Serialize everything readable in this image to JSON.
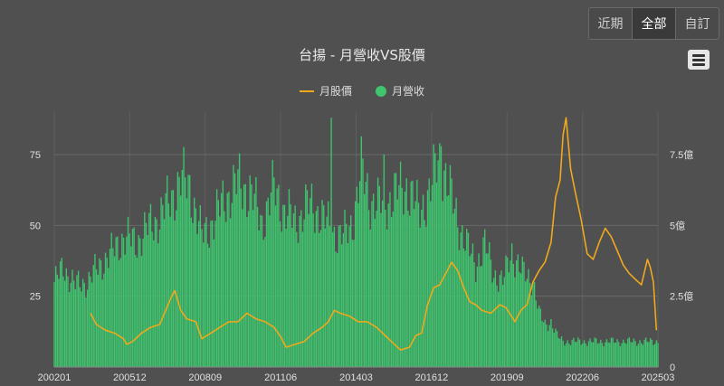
{
  "range_buttons": [
    {
      "label": "近期",
      "active": false
    },
    {
      "label": "全部",
      "active": true
    },
    {
      "label": "自訂",
      "active": false
    }
  ],
  "menu_icon": "hamburger-menu-icon",
  "chart_data": {
    "type": "bar+line",
    "title": "台揚 - 月營收VS股價",
    "legend": [
      {
        "name": "月股價",
        "type": "line",
        "color": "#f0a81c"
      },
      {
        "name": "月營收",
        "type": "bar",
        "color": "#3ec56e"
      }
    ],
    "x_tick_labels": [
      "200201",
      "200512",
      "200809",
      "201106",
      "201403",
      "201612",
      "201909",
      "202206",
      "202503"
    ],
    "y_left": {
      "ticks": [
        0,
        25,
        50,
        75
      ],
      "labels": [
        "",
        "25",
        "50",
        "75"
      ],
      "range": [
        0,
        90
      ]
    },
    "y_right": {
      "ticks": [
        0,
        2.5,
        5,
        7.5
      ],
      "labels": [
        "0",
        "2.5億",
        "5億",
        "7.5億"
      ],
      "range": [
        0,
        9
      ]
    },
    "grid": true,
    "revenue_anchors": [
      [
        0,
        3.0
      ],
      [
        6,
        3.5
      ],
      [
        14,
        2.9
      ],
      [
        22,
        3.0
      ],
      [
        30,
        3.6
      ],
      [
        38,
        4.0
      ],
      [
        46,
        4.6
      ],
      [
        54,
        4.4
      ],
      [
        62,
        4.9
      ],
      [
        70,
        5.3
      ],
      [
        78,
        6.0
      ],
      [
        84,
        6.6
      ],
      [
        90,
        6.4
      ],
      [
        98,
        4.6
      ],
      [
        106,
        5.2
      ],
      [
        114,
        6.0
      ],
      [
        122,
        6.5
      ],
      [
        130,
        6.2
      ],
      [
        138,
        5.1
      ],
      [
        146,
        6.3
      ],
      [
        152,
        5.6
      ],
      [
        160,
        5.1
      ],
      [
        168,
        5.7
      ],
      [
        176,
        5.5
      ],
      [
        184,
        4.8
      ],
      [
        192,
        4.6
      ],
      [
        198,
        5.1
      ],
      [
        204,
        6.9
      ],
      [
        210,
        5.9
      ],
      [
        218,
        5.7
      ],
      [
        226,
        6.1
      ],
      [
        234,
        6.4
      ],
      [
        242,
        5.5
      ],
      [
        250,
        6.2
      ],
      [
        256,
        7.6
      ],
      [
        262,
        6.3
      ],
      [
        268,
        5.2
      ],
      [
        274,
        4.3
      ],
      [
        280,
        3.6
      ],
      [
        286,
        4.3
      ],
      [
        292,
        3.3
      ],
      [
        298,
        3.0
      ],
      [
        304,
        4.1
      ],
      [
        310,
        3.4
      ],
      [
        314,
        3.2
      ],
      [
        318,
        3.1
      ],
      [
        322,
        1.9
      ],
      [
        326,
        1.5
      ],
      [
        330,
        1.6
      ],
      [
        334,
        1.1
      ],
      [
        338,
        0.9
      ]
    ],
    "revenue_spikes": [
      [
        184,
        8.8
      ],
      [
        184,
        7.7
      ],
      [
        256,
        7.9
      ],
      [
        257,
        7.8
      ],
      [
        219,
        7.5
      ]
    ],
    "price_series": [
      [
        24,
        19
      ],
      [
        28,
        15
      ],
      [
        34,
        13
      ],
      [
        40,
        12
      ],
      [
        46,
        10
      ],
      [
        48,
        8
      ],
      [
        52,
        9
      ],
      [
        58,
        12
      ],
      [
        64,
        14
      ],
      [
        70,
        15
      ],
      [
        74,
        20
      ],
      [
        78,
        25
      ],
      [
        80,
        27
      ],
      [
        84,
        20
      ],
      [
        88,
        17
      ],
      [
        94,
        16
      ],
      [
        98,
        10
      ],
      [
        104,
        12
      ],
      [
        110,
        14
      ],
      [
        116,
        16
      ],
      [
        122,
        16
      ],
      [
        128,
        19
      ],
      [
        134,
        17
      ],
      [
        140,
        16
      ],
      [
        146,
        14
      ],
      [
        150,
        11
      ],
      [
        154,
        7
      ],
      [
        160,
        8
      ],
      [
        166,
        9
      ],
      [
        172,
        12
      ],
      [
        178,
        14
      ],
      [
        182,
        16
      ],
      [
        186,
        20
      ],
      [
        190,
        19
      ],
      [
        196,
        18
      ],
      [
        202,
        16
      ],
      [
        208,
        16
      ],
      [
        214,
        14
      ],
      [
        220,
        11
      ],
      [
        226,
        8
      ],
      [
        230,
        6
      ],
      [
        236,
        7
      ],
      [
        240,
        11
      ],
      [
        244,
        12
      ],
      [
        248,
        22
      ],
      [
        252,
        28
      ],
      [
        256,
        29
      ],
      [
        260,
        33
      ],
      [
        264,
        37
      ],
      [
        268,
        34
      ],
      [
        272,
        28
      ],
      [
        276,
        23
      ],
      [
        280,
        22
      ],
      [
        284,
        20
      ],
      [
        290,
        19
      ],
      [
        296,
        22
      ],
      [
        300,
        21
      ],
      [
        306,
        16
      ],
      [
        310,
        20
      ],
      [
        314,
        22
      ],
      [
        318,
        30
      ],
      [
        322,
        34
      ],
      [
        326,
        37
      ],
      [
        330,
        44
      ],
      [
        333,
        60
      ],
      [
        336,
        66
      ],
      [
        338,
        82
      ],
      [
        340,
        88
      ],
      [
        343,
        70
      ],
      [
        346,
        62
      ],
      [
        350,
        52
      ],
      [
        354,
        40
      ],
      [
        358,
        38
      ],
      [
        362,
        44
      ],
      [
        366,
        49
      ],
      [
        370,
        46
      ],
      [
        374,
        41
      ],
      [
        378,
        36
      ],
      [
        382,
        33
      ],
      [
        386,
        31
      ],
      [
        390,
        29
      ],
      [
        394,
        38
      ],
      [
        396,
        35
      ],
      [
        398,
        30
      ],
      [
        400,
        13
      ]
    ],
    "n_months": 402
  }
}
